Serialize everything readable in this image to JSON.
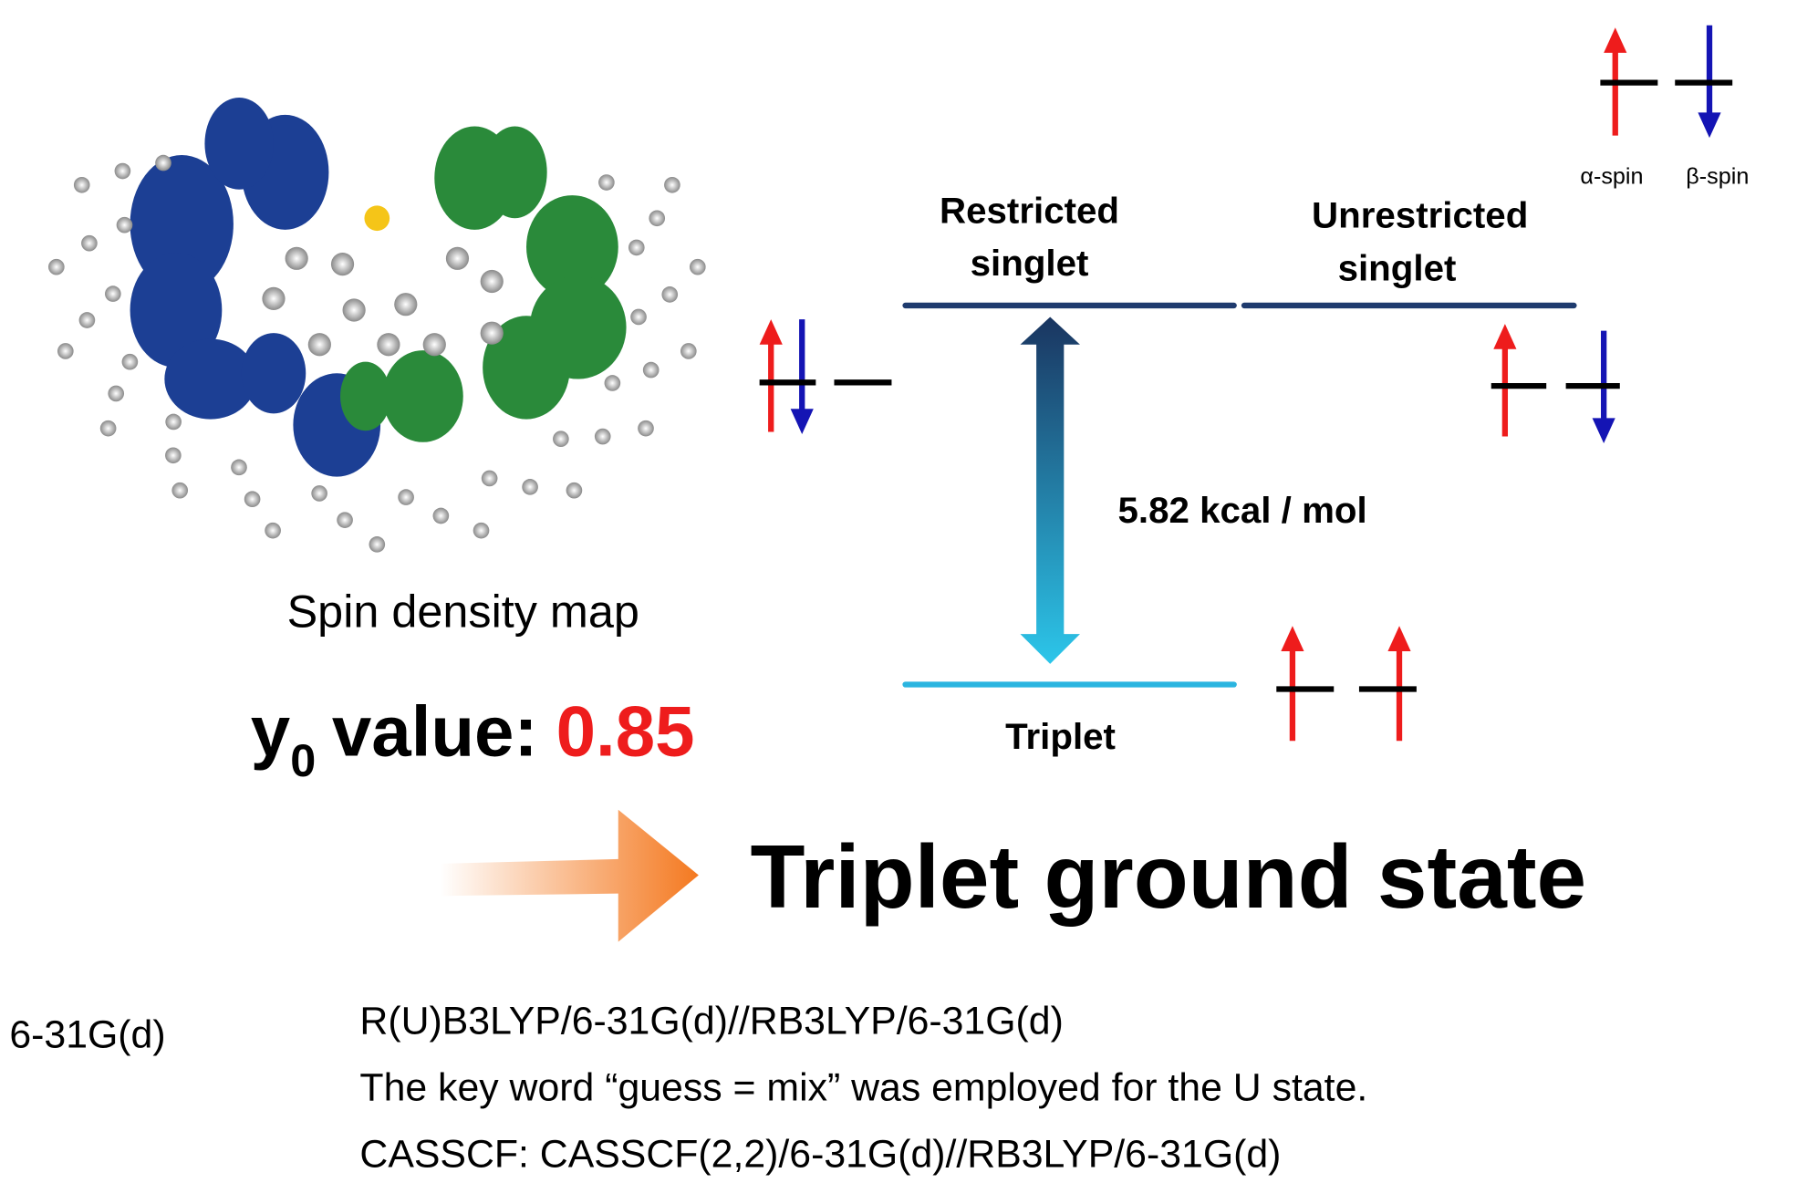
{
  "molecule": {
    "caption": "Spin density map"
  },
  "y0": {
    "label": "y",
    "subscript": "0",
    "text": "value:",
    "value": "0.85"
  },
  "legend": {
    "alpha": "α-spin",
    "beta": "β-spin"
  },
  "states": {
    "restricted": [
      "Restricted",
      "singlet"
    ],
    "unrestricted": [
      "Unrestricted",
      "singlet"
    ],
    "triplet": "Triplet"
  },
  "gap": "5.82 kcal / mol",
  "conclusion": "Triplet ground state",
  "methods": {
    "cut_left": "6-31G(d)",
    "lines": [
      "R(U)B3LYP/6-31G(d)//RB3LYP/6-31G(d)",
      "The key word “guess = mix” was employed for the U state.",
      "CASSCF: CASSCF(2,2)/6-31G(d)//RB3LYP/6-31G(d)"
    ]
  }
}
